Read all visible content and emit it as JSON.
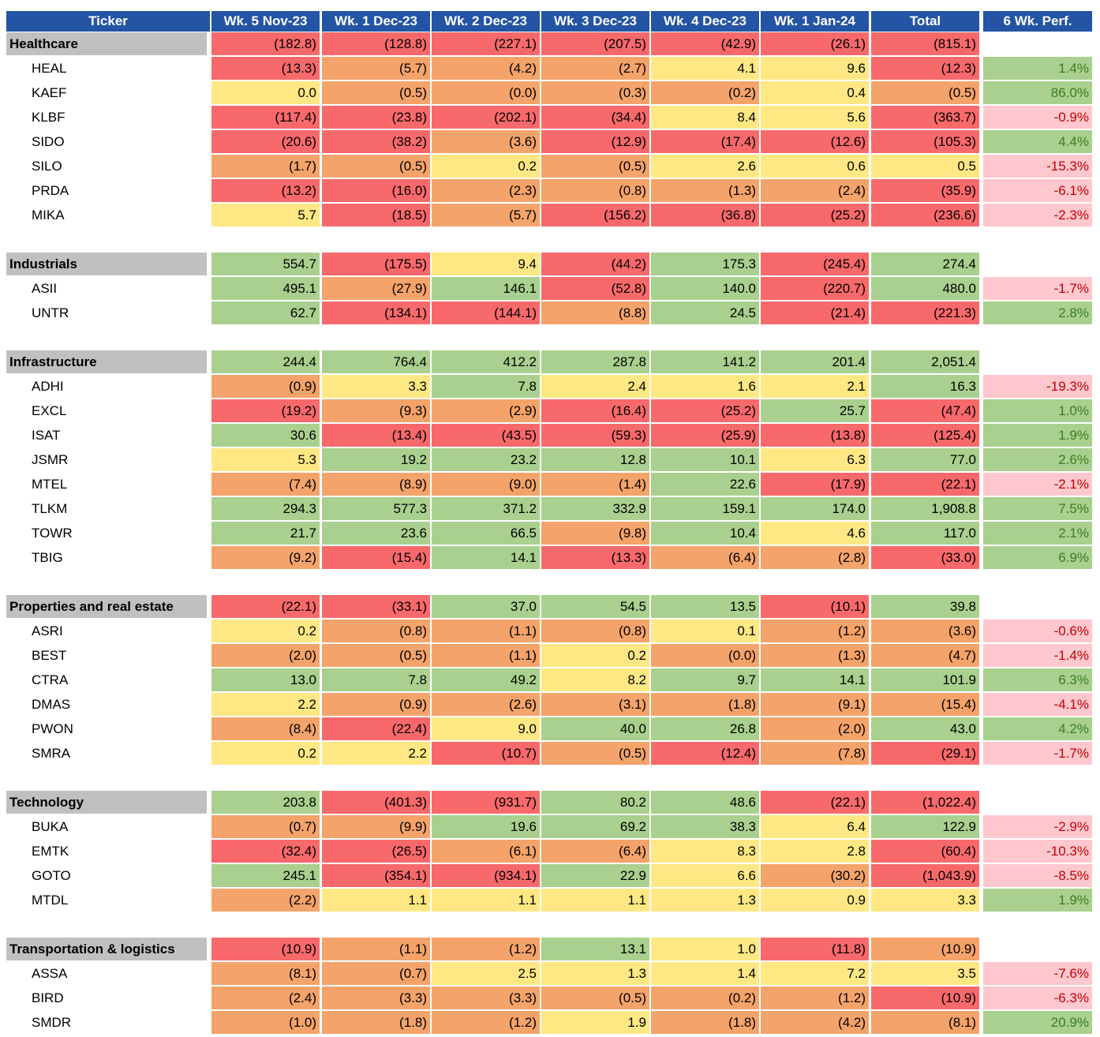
{
  "header": {
    "columns": [
      "Ticker",
      "Wk. 5 Nov-23",
      "Wk. 1 Dec-23",
      "Wk. 2 Dec-23",
      "Wk. 3 Dec-23",
      "Wk. 4 Dec-23",
      "Wk. 1 Jan-24",
      "Total",
      "6 Wk. Perf."
    ]
  },
  "sections": [
    {
      "name": "Healthcare",
      "values": [
        "(182.8)",
        "(128.8)",
        "(227.1)",
        "(207.5)",
        "(42.9)",
        "(26.1)",
        "(815.1)"
      ],
      "colors": [
        "#f8696b",
        "#f8696b",
        "#f8696b",
        "#f8696b",
        "#f8696b",
        "#f8696b",
        "#f8696b"
      ],
      "rows": [
        {
          "ticker": "HEAL",
          "values": [
            "(13.3)",
            "(5.7)",
            "(4.2)",
            "(2.7)",
            "4.1",
            "9.6",
            "(12.3)"
          ],
          "colors": [
            "#f8696b",
            "#f4a36a",
            "#f4a36a",
            "#f4a36a",
            "#ffe884",
            "#ffe884",
            "#f8696b"
          ],
          "perf": "1.4%",
          "perf_colors": [
            "#a9d08e",
            "#3a7d22"
          ]
        },
        {
          "ticker": "KAEF",
          "values": [
            "0.0",
            "(0.5)",
            "(0.0)",
            "(0.3)",
            "(0.2)",
            "0.4",
            "(0.5)"
          ],
          "colors": [
            "#ffe884",
            "#f4a36a",
            "#f4a36a",
            "#f4a36a",
            "#f4a36a",
            "#ffe884",
            "#f4a36a"
          ],
          "perf": "86.0%",
          "perf_colors": [
            "#a9d08e",
            "#3a7d22"
          ]
        },
        {
          "ticker": "KLBF",
          "values": [
            "(117.4)",
            "(23.8)",
            "(202.1)",
            "(34.4)",
            "8.4",
            "5.6",
            "(363.7)"
          ],
          "colors": [
            "#f8696b",
            "#f8696b",
            "#f8696b",
            "#f8696b",
            "#ffe884",
            "#ffe884",
            "#f8696b"
          ],
          "perf": "-0.9%",
          "perf_colors": [
            "#ffc7ce",
            "#c00000"
          ]
        },
        {
          "ticker": "SIDO",
          "values": [
            "(20.6)",
            "(38.2)",
            "(3.6)",
            "(12.9)",
            "(17.4)",
            "(12.6)",
            "(105.3)"
          ],
          "colors": [
            "#f8696b",
            "#f8696b",
            "#f4a36a",
            "#f8696b",
            "#f8696b",
            "#f8696b",
            "#f8696b"
          ],
          "perf": "4.4%",
          "perf_colors": [
            "#a9d08e",
            "#3a7d22"
          ]
        },
        {
          "ticker": "SILO",
          "values": [
            "(1.7)",
            "(0.5)",
            "0.2",
            "(0.5)",
            "2.6",
            "0.6",
            "0.5"
          ],
          "colors": [
            "#f4a36a",
            "#f4a36a",
            "#ffe884",
            "#f4a36a",
            "#ffe884",
            "#ffe884",
            "#ffe884"
          ],
          "perf": "-15.3%",
          "perf_colors": [
            "#ffc7ce",
            "#c00000"
          ]
        },
        {
          "ticker": "PRDA",
          "values": [
            "(13.2)",
            "(16.0)",
            "(2.3)",
            "(0.8)",
            "(1.3)",
            "(2.4)",
            "(35.9)"
          ],
          "colors": [
            "#f8696b",
            "#f8696b",
            "#f4a36a",
            "#f4a36a",
            "#f4a36a",
            "#f4a36a",
            "#f8696b"
          ],
          "perf": "-6.1%",
          "perf_colors": [
            "#ffc7ce",
            "#c00000"
          ]
        },
        {
          "ticker": "MIKA",
          "values": [
            "5.7",
            "(18.5)",
            "(5.7)",
            "(156.2)",
            "(36.8)",
            "(25.2)",
            "(236.6)"
          ],
          "colors": [
            "#ffe884",
            "#f8696b",
            "#f4a36a",
            "#f8696b",
            "#f8696b",
            "#f8696b",
            "#f8696b"
          ],
          "perf": "-2.3%",
          "perf_colors": [
            "#ffc7ce",
            "#c00000"
          ]
        }
      ]
    },
    {
      "name": "Industrials",
      "values": [
        "554.7",
        "(175.5)",
        "9.4",
        "(44.2)",
        "175.3",
        "(245.4)",
        "274.4"
      ],
      "colors": [
        "#a9d08e",
        "#f8696b",
        "#ffe884",
        "#f8696b",
        "#a9d08e",
        "#f8696b",
        "#a9d08e"
      ],
      "rows": [
        {
          "ticker": "ASII",
          "values": [
            "495.1",
            "(27.9)",
            "146.1",
            "(52.8)",
            "140.0",
            "(220.7)",
            "480.0"
          ],
          "colors": [
            "#a9d08e",
            "#f4a36a",
            "#a9d08e",
            "#f8696b",
            "#a9d08e",
            "#f8696b",
            "#a9d08e"
          ],
          "perf": "-1.7%",
          "perf_colors": [
            "#ffc7ce",
            "#c00000"
          ]
        },
        {
          "ticker": "UNTR",
          "values": [
            "62.7",
            "(134.1)",
            "(144.1)",
            "(8.8)",
            "24.5",
            "(21.4)",
            "(221.3)"
          ],
          "colors": [
            "#a9d08e",
            "#f8696b",
            "#f8696b",
            "#f4a36a",
            "#a9d08e",
            "#f8696b",
            "#f8696b"
          ],
          "perf": "2.8%",
          "perf_colors": [
            "#a9d08e",
            "#3a7d22"
          ]
        }
      ]
    },
    {
      "name": "Infrastructure",
      "values": [
        "244.4",
        "764.4",
        "412.2",
        "287.8",
        "141.2",
        "201.4",
        "2,051.4"
      ],
      "colors": [
        "#a9d08e",
        "#a9d08e",
        "#a9d08e",
        "#a9d08e",
        "#a9d08e",
        "#a9d08e",
        "#a9d08e"
      ],
      "rows": [
        {
          "ticker": "ADHI",
          "values": [
            "(0.9)",
            "3.3",
            "7.8",
            "2.4",
            "1.6",
            "2.1",
            "16.3"
          ],
          "colors": [
            "#f4a36a",
            "#ffe884",
            "#a9d08e",
            "#ffe884",
            "#ffe884",
            "#ffe884",
            "#a9d08e"
          ],
          "perf": "-19.3%",
          "perf_colors": [
            "#ffc7ce",
            "#c00000"
          ]
        },
        {
          "ticker": "EXCL",
          "values": [
            "(19.2)",
            "(9.3)",
            "(2.9)",
            "(16.4)",
            "(25.2)",
            "25.7",
            "(47.4)"
          ],
          "colors": [
            "#f8696b",
            "#f4a36a",
            "#f4a36a",
            "#f8696b",
            "#f8696b",
            "#a9d08e",
            "#f8696b"
          ],
          "perf": "1.0%",
          "perf_colors": [
            "#a9d08e",
            "#3a7d22"
          ]
        },
        {
          "ticker": "ISAT",
          "values": [
            "30.6",
            "(13.4)",
            "(43.5)",
            "(59.3)",
            "(25.9)",
            "(13.8)",
            "(125.4)"
          ],
          "colors": [
            "#a9d08e",
            "#f8696b",
            "#f8696b",
            "#f8696b",
            "#f8696b",
            "#f8696b",
            "#f8696b"
          ],
          "perf": "1.9%",
          "perf_colors": [
            "#a9d08e",
            "#3a7d22"
          ]
        },
        {
          "ticker": "JSMR",
          "values": [
            "5.3",
            "19.2",
            "23.2",
            "12.8",
            "10.1",
            "6.3",
            "77.0"
          ],
          "colors": [
            "#ffe884",
            "#a9d08e",
            "#a9d08e",
            "#a9d08e",
            "#a9d08e",
            "#ffe884",
            "#a9d08e"
          ],
          "perf": "2.6%",
          "perf_colors": [
            "#a9d08e",
            "#3a7d22"
          ]
        },
        {
          "ticker": "MTEL",
          "values": [
            "(7.4)",
            "(8.9)",
            "(9.0)",
            "(1.4)",
            "22.6",
            "(17.9)",
            "(22.1)"
          ],
          "colors": [
            "#f4a36a",
            "#f4a36a",
            "#f4a36a",
            "#f4a36a",
            "#a9d08e",
            "#f8696b",
            "#f8696b"
          ],
          "perf": "-2.1%",
          "perf_colors": [
            "#ffc7ce",
            "#c00000"
          ]
        },
        {
          "ticker": "TLKM",
          "values": [
            "294.3",
            "577.3",
            "371.2",
            "332.9",
            "159.1",
            "174.0",
            "1,908.8"
          ],
          "colors": [
            "#a9d08e",
            "#a9d08e",
            "#a9d08e",
            "#a9d08e",
            "#a9d08e",
            "#a9d08e",
            "#a9d08e"
          ],
          "perf": "7.5%",
          "perf_colors": [
            "#a9d08e",
            "#3a7d22"
          ]
        },
        {
          "ticker": "TOWR",
          "values": [
            "21.7",
            "23.6",
            "66.5",
            "(9.8)",
            "10.4",
            "4.6",
            "117.0"
          ],
          "colors": [
            "#a9d08e",
            "#a9d08e",
            "#a9d08e",
            "#f4a36a",
            "#a9d08e",
            "#ffe884",
            "#a9d08e"
          ],
          "perf": "2.1%",
          "perf_colors": [
            "#a9d08e",
            "#3a7d22"
          ]
        },
        {
          "ticker": "TBIG",
          "values": [
            "(9.2)",
            "(15.4)",
            "14.1",
            "(13.3)",
            "(6.4)",
            "(2.8)",
            "(33.0)"
          ],
          "colors": [
            "#f4a36a",
            "#f8696b",
            "#a9d08e",
            "#f8696b",
            "#f4a36a",
            "#f4a36a",
            "#f8696b"
          ],
          "perf": "6.9%",
          "perf_colors": [
            "#a9d08e",
            "#3a7d22"
          ]
        }
      ]
    },
    {
      "name": "Properties and real estate",
      "values": [
        "(22.1)",
        "(33.1)",
        "37.0",
        "54.5",
        "13.5",
        "(10.1)",
        "39.8"
      ],
      "colors": [
        "#f8696b",
        "#f8696b",
        "#a9d08e",
        "#a9d08e",
        "#a9d08e",
        "#f8696b",
        "#a9d08e"
      ],
      "rows": [
        {
          "ticker": "ASRI",
          "values": [
            "0.2",
            "(0.8)",
            "(1.1)",
            "(0.8)",
            "0.1",
            "(1.2)",
            "(3.6)"
          ],
          "colors": [
            "#ffe884",
            "#f4a36a",
            "#f4a36a",
            "#f4a36a",
            "#ffe884",
            "#f4a36a",
            "#f4a36a"
          ],
          "perf": "-0.6%",
          "perf_colors": [
            "#ffc7ce",
            "#c00000"
          ]
        },
        {
          "ticker": "BEST",
          "values": [
            "(2.0)",
            "(0.5)",
            "(1.1)",
            "0.2",
            "(0.0)",
            "(1.3)",
            "(4.7)"
          ],
          "colors": [
            "#f4a36a",
            "#f4a36a",
            "#f4a36a",
            "#ffe884",
            "#f4a36a",
            "#f4a36a",
            "#f4a36a"
          ],
          "perf": "-1.4%",
          "perf_colors": [
            "#ffc7ce",
            "#c00000"
          ]
        },
        {
          "ticker": "CTRA",
          "values": [
            "13.0",
            "7.8",
            "49.2",
            "8.2",
            "9.7",
            "14.1",
            "101.9"
          ],
          "colors": [
            "#a9d08e",
            "#a9d08e",
            "#a9d08e",
            "#ffe884",
            "#a9d08e",
            "#a9d08e",
            "#a9d08e"
          ],
          "perf": "6.3%",
          "perf_colors": [
            "#a9d08e",
            "#3a7d22"
          ]
        },
        {
          "ticker": "DMAS",
          "values": [
            "2.2",
            "(0.9)",
            "(2.6)",
            "(3.1)",
            "(1.8)",
            "(9.1)",
            "(15.4)"
          ],
          "colors": [
            "#ffe884",
            "#f4a36a",
            "#f4a36a",
            "#f4a36a",
            "#f4a36a",
            "#f4a36a",
            "#f4a36a"
          ],
          "perf": "-4.1%",
          "perf_colors": [
            "#ffc7ce",
            "#c00000"
          ]
        },
        {
          "ticker": "PWON",
          "values": [
            "(8.4)",
            "(22.4)",
            "9.0",
            "40.0",
            "26.8",
            "(2.0)",
            "43.0"
          ],
          "colors": [
            "#f4a36a",
            "#f8696b",
            "#ffe884",
            "#a9d08e",
            "#a9d08e",
            "#f4a36a",
            "#a9d08e"
          ],
          "perf": "4.2%",
          "perf_colors": [
            "#a9d08e",
            "#3a7d22"
          ]
        },
        {
          "ticker": "SMRA",
          "values": [
            "0.2",
            "2.2",
            "(10.7)",
            "(0.5)",
            "(12.4)",
            "(7.8)",
            "(29.1)"
          ],
          "colors": [
            "#ffe884",
            "#ffe884",
            "#f8696b",
            "#f4a36a",
            "#f8696b",
            "#f4a36a",
            "#f8696b"
          ],
          "perf": "-1.7%",
          "perf_colors": [
            "#ffc7ce",
            "#c00000"
          ]
        }
      ]
    },
    {
      "name": "Technology",
      "values": [
        "203.8",
        "(401.3)",
        "(931.7)",
        "80.2",
        "48.6",
        "(22.1)",
        "(1,022.4)"
      ],
      "colors": [
        "#a9d08e",
        "#f8696b",
        "#f8696b",
        "#a9d08e",
        "#a9d08e",
        "#f8696b",
        "#f8696b"
      ],
      "rows": [
        {
          "ticker": "BUKA",
          "values": [
            "(0.7)",
            "(9.9)",
            "19.6",
            "69.2",
            "38.3",
            "6.4",
            "122.9"
          ],
          "colors": [
            "#f4a36a",
            "#f4a36a",
            "#a9d08e",
            "#a9d08e",
            "#a9d08e",
            "#ffe884",
            "#a9d08e"
          ],
          "perf": "-2.9%",
          "perf_colors": [
            "#ffc7ce",
            "#c00000"
          ]
        },
        {
          "ticker": "EMTK",
          "values": [
            "(32.4)",
            "(26.5)",
            "(6.1)",
            "(6.4)",
            "8.3",
            "2.8",
            "(60.4)"
          ],
          "colors": [
            "#f8696b",
            "#f8696b",
            "#f4a36a",
            "#f4a36a",
            "#ffe884",
            "#ffe884",
            "#f8696b"
          ],
          "perf": "-10.3%",
          "perf_colors": [
            "#ffc7ce",
            "#c00000"
          ]
        },
        {
          "ticker": "GOTO",
          "values": [
            "245.1",
            "(354.1)",
            "(934.1)",
            "22.9",
            "6.6",
            "(30.2)",
            "(1,043.9)"
          ],
          "colors": [
            "#a9d08e",
            "#f8696b",
            "#f8696b",
            "#a9d08e",
            "#ffe884",
            "#f4a36a",
            "#f8696b"
          ],
          "perf": "-8.5%",
          "perf_colors": [
            "#ffc7ce",
            "#c00000"
          ]
        },
        {
          "ticker": "MTDL",
          "values": [
            "(2.2)",
            "1.1",
            "1.1",
            "1.1",
            "1.3",
            "0.9",
            "3.3"
          ],
          "colors": [
            "#f4a36a",
            "#ffe884",
            "#ffe884",
            "#ffe884",
            "#ffe884",
            "#ffe884",
            "#ffe884"
          ],
          "perf": "1.9%",
          "perf_colors": [
            "#a9d08e",
            "#3a7d22"
          ]
        }
      ]
    },
    {
      "name": "Transportation & logistics",
      "values": [
        "(10.9)",
        "(1.1)",
        "(1.2)",
        "13.1",
        "1.0",
        "(11.8)",
        "(10.9)"
      ],
      "colors": [
        "#f8696b",
        "#f4a36a",
        "#f4a36a",
        "#a9d08e",
        "#ffe884",
        "#f8696b",
        "#f4a36a"
      ],
      "rows": [
        {
          "ticker": "ASSA",
          "values": [
            "(8.1)",
            "(0.7)",
            "2.5",
            "1.3",
            "1.4",
            "7.2",
            "3.5"
          ],
          "colors": [
            "#f4a36a",
            "#f4a36a",
            "#ffe884",
            "#ffe884",
            "#ffe884",
            "#ffe884",
            "#ffe884"
          ],
          "perf": "-7.6%",
          "perf_colors": [
            "#ffc7ce",
            "#c00000"
          ]
        },
        {
          "ticker": "BIRD",
          "values": [
            "(2.4)",
            "(3.3)",
            "(3.3)",
            "(0.5)",
            "(0.2)",
            "(1.2)",
            "(10.9)"
          ],
          "colors": [
            "#f4a36a",
            "#f4a36a",
            "#f4a36a",
            "#f4a36a",
            "#f4a36a",
            "#f4a36a",
            "#f8696b"
          ],
          "perf": "-6.3%",
          "perf_colors": [
            "#ffc7ce",
            "#c00000"
          ]
        },
        {
          "ticker": "SMDR",
          "values": [
            "(1.0)",
            "(1.8)",
            "(1.2)",
            "1.9",
            "(1.8)",
            "(4.2)",
            "(8.1)"
          ],
          "colors": [
            "#f4a36a",
            "#f4a36a",
            "#f4a36a",
            "#ffe884",
            "#f4a36a",
            "#f4a36a",
            "#f4a36a"
          ],
          "perf": "20.9%",
          "perf_colors": [
            "#a9d08e",
            "#3a7d22"
          ]
        }
      ]
    }
  ]
}
